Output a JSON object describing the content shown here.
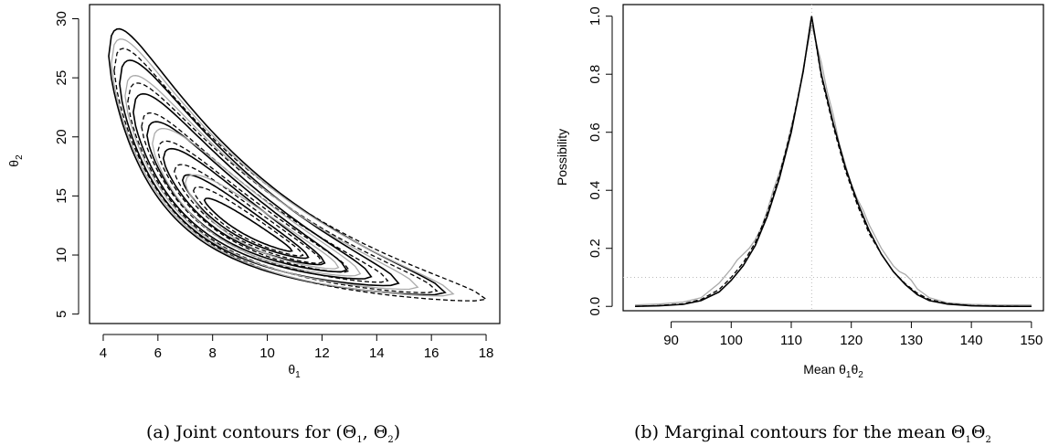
{
  "chart_data": [
    {
      "type": "contour",
      "caption": "(a) Joint contours for (Θ1, Θ2)",
      "xlabel": "θ1",
      "ylabel": "θ2",
      "xlim": [
        3.5,
        18.5
      ],
      "ylim": [
        4.2,
        31.2
      ],
      "xticks": [
        4,
        6,
        8,
        10,
        12,
        14,
        16,
        18
      ],
      "yticks": [
        5,
        10,
        15,
        20,
        25,
        30
      ],
      "mode": [
        9.8,
        11.5
      ],
      "series": [
        {
          "style": "solid-black",
          "levels": [
            {
              "lo": 4.2,
              "hi": 16.5,
              "k": 0.45
            },
            {
              "lo": 4.6,
              "hi": 14.8,
              "k": 0.4
            },
            {
              "lo": 5.1,
              "hi": 13.8,
              "k": 0.34
            },
            {
              "lo": 5.6,
              "hi": 12.9,
              "k": 0.28
            },
            {
              "lo": 6.2,
              "hi": 12.1,
              "k": 0.22
            },
            {
              "lo": 6.9,
              "hi": 11.5,
              "k": 0.15
            },
            {
              "lo": 7.7,
              "hi": 10.9,
              "k": 0.08
            }
          ]
        },
        {
          "style": "dashed-black",
          "levels": [
            {
              "lo": 4.4,
              "hi": 18.0,
              "k": 0.42
            },
            {
              "lo": 4.9,
              "hi": 16.2,
              "k": 0.37
            },
            {
              "lo": 5.4,
              "hi": 14.4,
              "k": 0.3
            },
            {
              "lo": 6.0,
              "hi": 13.0,
              "k": 0.24
            },
            {
              "lo": 6.6,
              "hi": 12.0,
              "k": 0.18
            },
            {
              "lo": 7.3,
              "hi": 11.3,
              "k": 0.12
            }
          ]
        },
        {
          "style": "solid-grey",
          "levels": [
            {
              "lo": 4.3,
              "hi": 16.8,
              "k": 0.43
            },
            {
              "lo": 4.8,
              "hi": 15.5,
              "k": 0.38
            },
            {
              "lo": 5.8,
              "hi": 13.4,
              "k": 0.3
            },
            {
              "lo": 7.0,
              "hi": 12.6,
              "k": 0.2
            }
          ]
        }
      ]
    },
    {
      "type": "line",
      "caption": "(b) Marginal contours for the mean Θ1Θ2",
      "xlabel": "Mean θ1θ2",
      "ylabel": "Possibility",
      "xlim": [
        82,
        152
      ],
      "ylim": [
        -0.015,
        1.04
      ],
      "xticks": [
        90,
        100,
        110,
        120,
        130,
        140,
        150
      ],
      "yticks": [
        "0.0",
        "0.2",
        "0.4",
        "0.6",
        "0.8",
        "1.0"
      ],
      "mode_x": 113.4,
      "reference_lines": {
        "x": 113.4,
        "y": 0.1
      },
      "series": [
        {
          "style": "solid-black",
          "x": [
            84,
            88,
            92,
            95,
            98,
            100,
            102,
            104,
            106,
            108,
            110,
            112,
            113.4,
            115,
            117,
            119,
            121,
            123,
            125,
            127,
            129,
            131,
            133,
            136,
            140,
            145,
            150
          ],
          "y": [
            0.0,
            0.002,
            0.007,
            0.02,
            0.05,
            0.09,
            0.14,
            0.21,
            0.31,
            0.44,
            0.6,
            0.81,
            1.0,
            0.8,
            0.63,
            0.48,
            0.36,
            0.26,
            0.18,
            0.12,
            0.075,
            0.04,
            0.02,
            0.008,
            0.002,
            0.0,
            0.0
          ]
        },
        {
          "style": "dashed-black",
          "x": [
            84,
            88,
            92,
            95,
            98,
            100,
            102,
            104,
            106,
            108,
            110,
            112,
            113.4,
            115,
            117,
            119,
            121,
            123,
            125,
            127,
            129,
            131,
            133,
            136,
            140,
            145,
            150
          ],
          "y": [
            0.0,
            0.003,
            0.009,
            0.024,
            0.058,
            0.1,
            0.15,
            0.22,
            0.32,
            0.45,
            0.61,
            0.81,
            1.0,
            0.79,
            0.62,
            0.47,
            0.35,
            0.25,
            0.18,
            0.12,
            0.078,
            0.045,
            0.024,
            0.01,
            0.003,
            0.001,
            0.0
          ]
        },
        {
          "style": "solid-grey",
          "x": [
            84,
            88,
            92,
            95,
            98,
            100,
            101,
            102,
            103,
            104,
            105,
            106,
            107,
            108,
            109,
            110,
            111,
            112,
            113.4,
            115,
            116,
            117,
            118,
            119,
            120,
            121,
            122,
            123,
            124,
            125,
            126,
            127,
            128,
            129,
            130,
            131,
            133,
            136,
            140,
            145,
            150
          ],
          "y": [
            0.005,
            0.008,
            0.015,
            0.03,
            0.08,
            0.13,
            0.16,
            0.18,
            0.2,
            0.23,
            0.27,
            0.33,
            0.4,
            0.46,
            0.53,
            0.62,
            0.7,
            0.82,
            0.97,
            0.84,
            0.74,
            0.66,
            0.56,
            0.49,
            0.42,
            0.37,
            0.33,
            0.28,
            0.24,
            0.2,
            0.17,
            0.14,
            0.12,
            0.11,
            0.09,
            0.06,
            0.03,
            0.012,
            0.007,
            0.005,
            0.005
          ]
        }
      ]
    }
  ]
}
